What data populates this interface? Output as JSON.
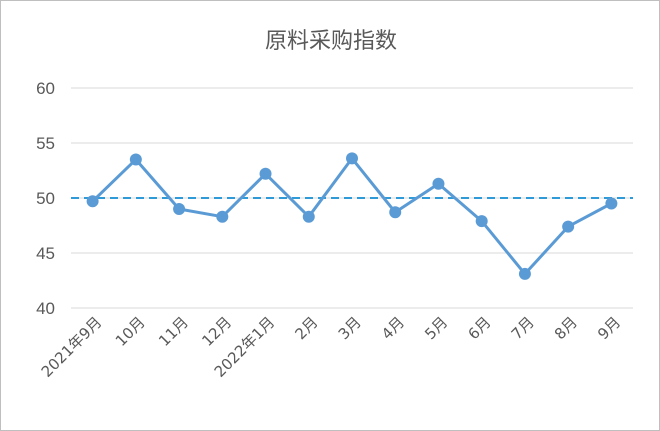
{
  "chart_data": {
    "type": "line",
    "title": "原料采购指数",
    "categories": [
      "2021年9月",
      "10月",
      "11月",
      "12月",
      "2022年1月",
      "2月",
      "3月",
      "4月",
      "5月",
      "6月",
      "7月",
      "8月",
      "9月"
    ],
    "values": [
      49.7,
      53.5,
      49.0,
      48.3,
      52.2,
      48.3,
      53.6,
      48.7,
      51.3,
      47.9,
      43.1,
      47.4,
      49.5
    ],
    "ylim": [
      40,
      60
    ],
    "yticks": [
      40,
      45,
      50,
      55,
      60
    ],
    "reference_line": {
      "value": 50,
      "style": "dashed"
    },
    "grid": true,
    "colors": {
      "series": "#5b9bd5",
      "reference": "#2e9bd8",
      "grid": "#d9d9d9"
    }
  }
}
